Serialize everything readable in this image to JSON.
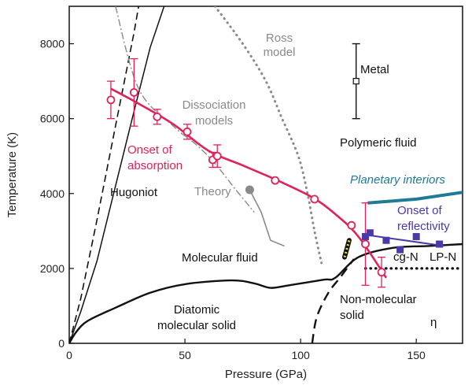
{
  "chart_data": {
    "type": "scatter",
    "title": "",
    "xlabel": "Pressure (GPa)",
    "ylabel": "Temperature (K)",
    "xlim": [
      0,
      170
    ],
    "ylim": [
      0,
      9000
    ],
    "xticks": [
      "0",
      "50",
      "100",
      "150"
    ],
    "yticks": [
      "0",
      "2000",
      "4000",
      "6000",
      "8000"
    ],
    "colors": {
      "absorption": "#e0215a",
      "reflectivity": "#4b3aa6",
      "planetary": "#1f7a96",
      "gray": "#8a8a8a",
      "black": "#111111"
    },
    "labels": {
      "ross": "Ross\nmodel",
      "metal": "Metal",
      "dissociation": "Dissociation\nmodels",
      "polymeric": "Polymeric fluid",
      "onset_absorption": "Onset of\nabsorption",
      "hugoniot": "Hugoniot",
      "theory": "Theory",
      "planetary": "Planetary interiors",
      "onset_reflectivity": "Onset of\nreflectivity",
      "molecular_fluid": "Molecular fluid",
      "cgn": "cg-N",
      "lpn": "LP-N",
      "diatomic": "Diatomic\nmolecular solid",
      "nonmolecular": "Non-molecular\nsolid",
      "eta": "η"
    },
    "absorption_points": [
      {
        "p": 18,
        "t": 6500,
        "err": 500
      },
      {
        "p": 28,
        "t": 6700,
        "err": 900
      },
      {
        "p": 38,
        "t": 6050,
        "err": 200
      },
      {
        "p": 51,
        "t": 5650,
        "err": 200
      },
      {
        "p": 62,
        "t": 4900,
        "err": 200
      },
      {
        "p": 64,
        "t": 5000,
        "err": 300
      },
      {
        "p": 89,
        "t": 4350,
        "err": 0
      },
      {
        "p": 106,
        "t": 3850,
        "err": 0
      },
      {
        "p": 122,
        "t": 3150,
        "err": 0
      },
      {
        "p": 128,
        "t": 2650,
        "err": 1100
      },
      {
        "p": 135,
        "t": 1900,
        "err": 400
      }
    ],
    "absorption_fit": [
      [
        18,
        6800
      ],
      [
        30,
        6400
      ],
      [
        45,
        5850
      ],
      [
        60,
        5150
      ],
      [
        75,
        4750
      ],
      [
        90,
        4350
      ],
      [
        105,
        3900
      ],
      [
        115,
        3450
      ],
      [
        125,
        2850
      ],
      [
        137,
        1750
      ]
    ],
    "reflectivity_points": [
      {
        "p": 128,
        "t": 2850
      },
      {
        "p": 130,
        "t": 2950
      },
      {
        "p": 137,
        "t": 2750
      },
      {
        "p": 143,
        "t": 2500
      },
      {
        "p": 150,
        "t": 2850
      },
      {
        "p": 160,
        "t": 2650
      }
    ],
    "reflectivity_fit": [
      [
        128,
        2900
      ],
      [
        162,
        2600
      ]
    ],
    "metal_point": {
      "p": 124,
      "t": 7000,
      "err": 1000
    },
    "theory_point": {
      "p": 78,
      "t": 4100
    },
    "theory_curve": [
      [
        78,
        4100
      ],
      [
        83,
        3500
      ],
      [
        87,
        2750
      ],
      [
        93,
        2600
      ]
    ],
    "planetary_curve": [
      [
        129,
        3750
      ],
      [
        150,
        3850
      ],
      [
        172,
        4050
      ]
    ],
    "hugoniot_solid": [
      [
        0,
        0
      ],
      [
        5,
        850
      ],
      [
        12,
        2200
      ],
      [
        20,
        4200
      ],
      [
        28,
        6200
      ],
      [
        35,
        7900
      ],
      [
        41,
        9000
      ]
    ],
    "hugoniot_dashed": [
      [
        0,
        0
      ],
      [
        5,
        1200
      ],
      [
        12,
        3300
      ],
      [
        20,
        5800
      ],
      [
        28,
        8300
      ],
      [
        30,
        9000
      ]
    ],
    "dissociation_curve": [
      [
        20,
        9000
      ],
      [
        30,
        6800
      ],
      [
        45,
        5800
      ],
      [
        55,
        5300
      ],
      [
        63,
        4800
      ],
      [
        72,
        4100
      ],
      [
        80,
        3500
      ]
    ],
    "ross_curve": [
      [
        63,
        9000
      ],
      [
        75,
        8000
      ],
      [
        85,
        7000
      ],
      [
        92,
        6000
      ],
      [
        99,
        5000
      ],
      [
        103,
        4000
      ],
      [
        106,
        3000
      ],
      [
        109,
        2150
      ]
    ],
    "melt_curve": [
      [
        0,
        0
      ],
      [
        3,
        300
      ],
      [
        8,
        600
      ],
      [
        20,
        950
      ],
      [
        35,
        1350
      ],
      [
        50,
        1580
      ],
      [
        70,
        1680
      ],
      [
        80,
        1600
      ],
      [
        87,
        1480
      ],
      [
        95,
        1550
      ],
      [
        110,
        1700
      ],
      [
        115,
        1750
      ],
      [
        125,
        2300
      ],
      [
        140,
        2550
      ],
      [
        155,
        2600
      ],
      [
        170,
        2650
      ]
    ],
    "nonmolecular_boundary_dashed": [
      [
        105,
        0
      ],
      [
        107,
        700
      ],
      [
        112,
        1350
      ],
      [
        117,
        1750
      ],
      [
        123,
        2250
      ]
    ],
    "cgn_lpn_boundary_dotted": [
      [
        128,
        2000
      ],
      [
        170,
        2000
      ]
    ],
    "nitrogen_trace": [
      [
        119,
        2300
      ],
      [
        121,
        2750
      ]
    ]
  }
}
